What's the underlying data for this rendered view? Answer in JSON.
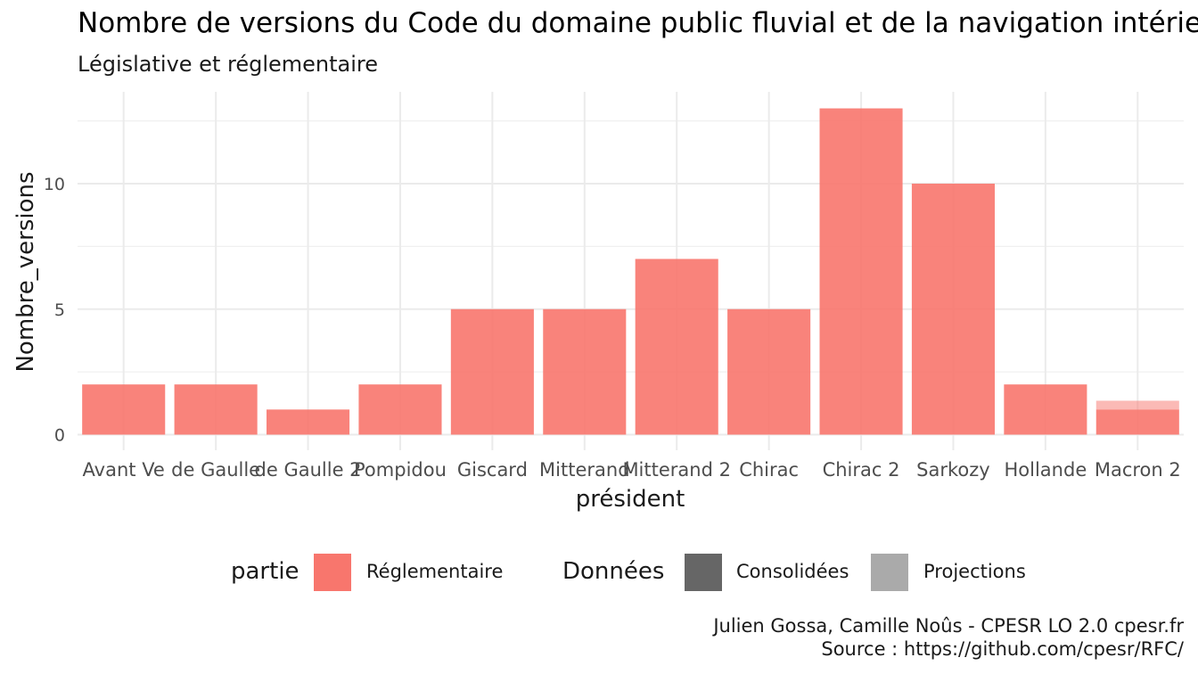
{
  "title": "Nombre de versions du Code du domaine public fluvial et de la navigation intérieure",
  "subtitle": "Législative et réglementaire",
  "caption": {
    "line1": "Julien Gossa, Camille Noûs - CPESR LO 2.0 cpesr.fr",
    "line2": "Source : https://github.com/cpesr/RFC/"
  },
  "legend": {
    "partie_title": "partie",
    "partie_items": [
      {
        "label": "Réglementaire",
        "color": "#F8766D"
      }
    ],
    "donnees_title": "Données",
    "donnees_items": [
      {
        "label": "Consolidées",
        "color": "#666666"
      },
      {
        "label": "Projections",
        "color": "#AAAAAA"
      }
    ]
  },
  "chart_data": {
    "type": "bar",
    "xlabel": "président",
    "ylabel": "Nombre_versions",
    "categories": [
      "Avant Ve",
      "de Gaulle",
      "de Gaulle 2",
      "Pompidou",
      "Giscard",
      "Mitterand",
      "Mitterand 2",
      "Chirac",
      "Chirac 2",
      "Sarkozy",
      "Hollande",
      "Macron 2"
    ],
    "series": [
      {
        "name": "Réglementaire",
        "data_type": "Consolidées",
        "color": "#F8766D",
        "values": [
          2,
          2,
          1,
          2,
          5,
          5,
          7,
          5,
          13,
          10,
          2,
          1
        ]
      },
      {
        "name": "Réglementaire",
        "data_type": "Projections",
        "color": "#F8766D",
        "values": [
          0,
          0,
          0,
          0,
          0,
          0,
          0,
          0,
          0,
          0,
          0,
          0.35
        ]
      }
    ],
    "ylim": [
      0,
      13
    ],
    "yticks": [
      0,
      5,
      10
    ],
    "grid": true,
    "legend_position": "bottom"
  }
}
